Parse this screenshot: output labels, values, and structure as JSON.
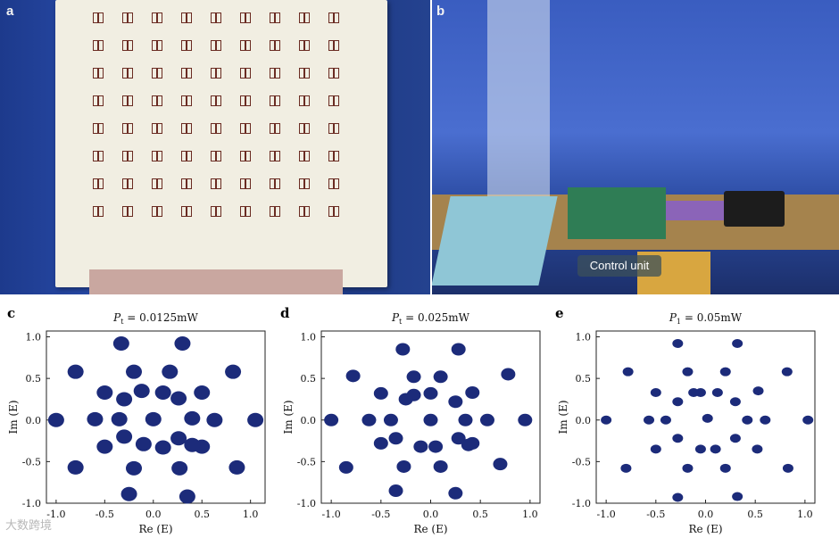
{
  "panels": {
    "a": "a",
    "b": "b",
    "c": "c",
    "d": "d",
    "e": "e"
  },
  "photo_b": {
    "control_label": "Control unit"
  },
  "watermark": "大数跨境",
  "colors": {
    "points": "#1c2b7a",
    "photo_background": "#2b4fb0",
    "board": "#f1eee2"
  },
  "chart_data": [
    {
      "type": "scatter",
      "title_symbol": "P",
      "title_subscript": "t",
      "title_value": " = 0.0125mW",
      "xlabel": "Re (E)",
      "ylabel": "Im (E)",
      "xlim": [
        -1.1,
        1.15
      ],
      "ylim": [
        -1.0,
        1.07
      ],
      "xticks": [
        "-1.0",
        "-0.5",
        "0.0",
        "0.5",
        "1.0"
      ],
      "yticks": [
        "1.0",
        "0.5",
        "0.0",
        "-0.5",
        "-1.0"
      ],
      "grid": false,
      "cluster_size": "large",
      "points": [
        [
          -1.0,
          0.0
        ],
        [
          1.05,
          0.0
        ],
        [
          -0.8,
          0.58
        ],
        [
          0.82,
          0.58
        ],
        [
          -0.8,
          -0.57
        ],
        [
          0.86,
          -0.57
        ],
        [
          -0.33,
          0.92
        ],
        [
          0.3,
          0.92
        ],
        [
          -0.25,
          -0.89
        ],
        [
          0.35,
          -0.92
        ],
        [
          -0.5,
          0.33
        ],
        [
          0.5,
          0.33
        ],
        [
          -0.5,
          -0.32
        ],
        [
          0.5,
          -0.32
        ],
        [
          -0.2,
          0.58
        ],
        [
          0.17,
          0.58
        ],
        [
          -0.2,
          -0.58
        ],
        [
          0.27,
          -0.58
        ],
        [
          -0.6,
          0.01
        ],
        [
          0.4,
          0.02
        ],
        [
          0.63,
          0.0
        ],
        [
          -0.35,
          0.01
        ],
        [
          0.0,
          0.01
        ],
        [
          -0.12,
          0.35
        ],
        [
          0.1,
          0.33
        ],
        [
          0.26,
          0.26
        ],
        [
          -0.3,
          0.25
        ],
        [
          -0.3,
          -0.2
        ],
        [
          0.26,
          -0.22
        ],
        [
          -0.1,
          -0.29
        ],
        [
          0.1,
          -0.33
        ],
        [
          0.4,
          -0.3
        ]
      ]
    },
    {
      "type": "scatter",
      "title_symbol": "P",
      "title_subscript": "t",
      "title_value": " = 0.025mW",
      "xlabel": "Re (E)",
      "ylabel": "Im (E)",
      "xlim": [
        -1.1,
        1.1
      ],
      "ylim": [
        -1.0,
        1.07
      ],
      "xticks": [
        "-1.0",
        "-0.5",
        "0.0",
        "0.5",
        "1.0"
      ],
      "yticks": [
        "1.0",
        "0.5",
        "0.0",
        "-0.5",
        "-1.0"
      ],
      "grid": false,
      "cluster_size": "medium",
      "points": [
        [
          -1.0,
          0.0
        ],
        [
          0.95,
          0.0
        ],
        [
          -0.78,
          0.53
        ],
        [
          0.78,
          0.55
        ],
        [
          -0.85,
          -0.57
        ],
        [
          0.7,
          -0.53
        ],
        [
          -0.28,
          0.85
        ],
        [
          0.28,
          0.85
        ],
        [
          -0.35,
          -0.85
        ],
        [
          0.25,
          -0.88
        ],
        [
          -0.5,
          0.32
        ],
        [
          0.42,
          0.33
        ],
        [
          -0.5,
          -0.28
        ],
        [
          0.42,
          -0.28
        ],
        [
          -0.17,
          0.52
        ],
        [
          0.1,
          0.52
        ],
        [
          -0.27,
          -0.56
        ],
        [
          0.1,
          -0.56
        ],
        [
          -0.62,
          0.0
        ],
        [
          0.35,
          0.0
        ],
        [
          0.57,
          0.0
        ],
        [
          -0.4,
          0.0
        ],
        [
          0.0,
          0.0
        ],
        [
          -0.17,
          0.3
        ],
        [
          0.0,
          0.32
        ],
        [
          0.25,
          0.22
        ],
        [
          -0.25,
          0.25
        ],
        [
          -0.35,
          -0.22
        ],
        [
          0.28,
          -0.22
        ],
        [
          -0.1,
          -0.32
        ],
        [
          0.05,
          -0.32
        ],
        [
          0.38,
          -0.3
        ]
      ]
    },
    {
      "type": "scatter",
      "title_symbol": "P",
      "title_subscript": "1",
      "title_value": " = 0.05mW",
      "xlabel": "Re (E)",
      "ylabel": "Im (E)",
      "xlim": [
        -1.1,
        1.1
      ],
      "ylim": [
        -1.0,
        1.07
      ],
      "xticks": [
        "-1.0",
        "-0.5",
        "0.0",
        "0.5",
        "1.0"
      ],
      "yticks": [
        "1.0",
        "0.5",
        "0.0",
        "-0.5",
        "-1.0"
      ],
      "grid": false,
      "cluster_size": "small",
      "points": [
        [
          -1.0,
          0.0
        ],
        [
          1.03,
          0.0
        ],
        [
          -0.78,
          0.58
        ],
        [
          0.82,
          0.58
        ],
        [
          -0.8,
          -0.58
        ],
        [
          0.83,
          -0.58
        ],
        [
          -0.28,
          0.92
        ],
        [
          0.32,
          0.92
        ],
        [
          -0.28,
          -0.93
        ],
        [
          0.32,
          -0.92
        ],
        [
          -0.5,
          0.33
        ],
        [
          0.53,
          0.35
        ],
        [
          -0.5,
          -0.35
        ],
        [
          0.52,
          -0.35
        ],
        [
          -0.18,
          0.58
        ],
        [
          0.2,
          0.58
        ],
        [
          -0.18,
          -0.58
        ],
        [
          0.2,
          -0.58
        ],
        [
          -0.57,
          0.0
        ],
        [
          0.42,
          0.0
        ],
        [
          0.6,
          0.0
        ],
        [
          -0.4,
          0.0
        ],
        [
          0.02,
          0.02
        ],
        [
          -0.28,
          0.22
        ],
        [
          -0.05,
          0.33
        ],
        [
          0.12,
          0.33
        ],
        [
          0.3,
          0.22
        ],
        [
          -0.28,
          -0.22
        ],
        [
          0.3,
          -0.22
        ],
        [
          -0.05,
          -0.35
        ],
        [
          0.1,
          -0.35
        ],
        [
          -0.12,
          0.33
        ]
      ]
    }
  ]
}
